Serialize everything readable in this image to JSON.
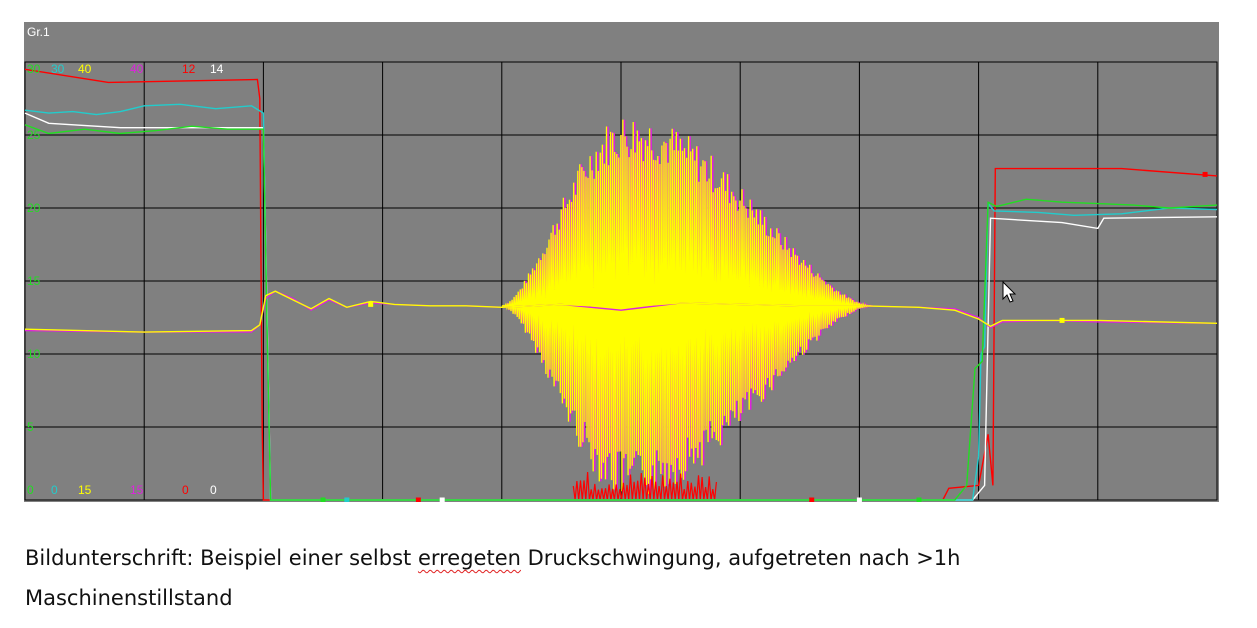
{
  "chart_data": {
    "type": "line",
    "panel_label": "Gr.1",
    "xlim": [
      0,
      1
    ],
    "ylim": [
      0,
      30
    ],
    "y_ticks": [
      "5",
      "10",
      "15",
      "20",
      "25"
    ],
    "grid": true,
    "top_scale": [
      {
        "text": "30",
        "color": "#22dd22"
      },
      {
        "text": "30",
        "color": "#22cccc"
      },
      {
        "text": "40",
        "color": "#ffff00"
      },
      {
        "text": "40",
        "color": "#dd22dd"
      },
      {
        "text": "12",
        "color": "#ff0000"
      },
      {
        "text": "14",
        "color": "#ffffff"
      }
    ],
    "bottom_scale": [
      {
        "text": "0",
        "color": "#22dd22"
      },
      {
        "text": "0",
        "color": "#22cccc"
      },
      {
        "text": "15",
        "color": "#ffff00"
      },
      {
        "text": "15",
        "color": "#dd22dd"
      },
      {
        "text": "0",
        "color": "#ff0000"
      },
      {
        "text": "0",
        "color": "#ffffff"
      }
    ],
    "series": [
      {
        "color": "#ff0000",
        "points": [
          [
            0,
            29.5
          ],
          [
            0.07,
            28.6
          ],
          [
            0.195,
            28.8
          ],
          [
            0.197,
            27.5
          ],
          [
            0.199,
            5
          ],
          [
            0.2,
            0
          ],
          [
            0.39,
            0
          ],
          [
            0.46,
            0
          ],
          [
            0.77,
            0
          ],
          [
            0.775,
            0.8
          ],
          [
            0.8,
            1
          ],
          [
            0.808,
            4.5
          ],
          [
            0.812,
            1
          ],
          [
            0.814,
            22.7
          ],
          [
            0.92,
            22.7
          ],
          [
            1,
            22.2
          ]
        ]
      },
      {
        "color": "#ffffff",
        "points": [
          [
            0,
            26.5
          ],
          [
            0.02,
            25.8
          ],
          [
            0.08,
            25.5
          ],
          [
            0.2,
            25.5
          ],
          [
            0.203,
            13
          ],
          [
            0.206,
            0
          ],
          [
            0.795,
            0
          ],
          [
            0.805,
            1
          ],
          [
            0.81,
            19.3
          ],
          [
            0.87,
            19
          ],
          [
            0.9,
            18.6
          ],
          [
            0.905,
            19.3
          ],
          [
            1,
            19.4
          ]
        ]
      },
      {
        "color": "#22cccc",
        "points": [
          [
            0,
            26.7
          ],
          [
            0.02,
            26.5
          ],
          [
            0.04,
            26.6
          ],
          [
            0.06,
            26.4
          ],
          [
            0.08,
            26.6
          ],
          [
            0.1,
            27
          ],
          [
            0.13,
            27.1
          ],
          [
            0.16,
            26.8
          ],
          [
            0.19,
            27
          ],
          [
            0.2,
            26.5
          ],
          [
            0.203,
            12
          ],
          [
            0.206,
            0
          ],
          [
            0.795,
            0
          ],
          [
            0.8,
            3
          ],
          [
            0.802,
            10
          ],
          [
            0.805,
            10.5
          ],
          [
            0.808,
            20.3
          ],
          [
            0.813,
            19.8
          ],
          [
            0.85,
            19.7
          ],
          [
            0.88,
            19.5
          ],
          [
            0.92,
            19.6
          ],
          [
            0.96,
            20
          ],
          [
            1,
            19.9
          ]
        ]
      },
      {
        "color": "#22dd22",
        "points": [
          [
            0,
            25.7
          ],
          [
            0.02,
            25.1
          ],
          [
            0.05,
            25.4
          ],
          [
            0.08,
            25.1
          ],
          [
            0.11,
            25.3
          ],
          [
            0.14,
            25.6
          ],
          [
            0.17,
            25.4
          ],
          [
            0.2,
            25.4
          ],
          [
            0.203,
            12
          ],
          [
            0.206,
            0
          ],
          [
            0.78,
            0
          ],
          [
            0.79,
            1
          ],
          [
            0.797,
            9
          ],
          [
            0.803,
            9.5
          ],
          [
            0.808,
            20.4
          ],
          [
            0.815,
            20.1
          ],
          [
            0.84,
            20.6
          ],
          [
            0.87,
            20.4
          ],
          [
            0.9,
            20.3
          ],
          [
            0.93,
            20.2
          ],
          [
            0.96,
            20
          ],
          [
            1,
            20.2
          ]
        ]
      },
      {
        "color": "#dd22dd",
        "points": [
          [
            0,
            11.6
          ],
          [
            0.1,
            11.5
          ],
          [
            0.19,
            11.5
          ],
          [
            0.197,
            12
          ],
          [
            0.202,
            13.8
          ],
          [
            0.21,
            14.3
          ],
          [
            0.225,
            13.8
          ],
          [
            0.24,
            13
          ],
          [
            0.255,
            13.7
          ],
          [
            0.27,
            13.2
          ],
          [
            0.29,
            13.5
          ],
          [
            0.31,
            13.4
          ],
          [
            0.34,
            13.3
          ],
          [
            0.37,
            13.3
          ],
          [
            0.4,
            13.2
          ],
          [
            0.45,
            13.4
          ],
          [
            0.5,
            13
          ],
          [
            0.55,
            13.5
          ],
          [
            0.6,
            13.4
          ],
          [
            0.65,
            13.3
          ],
          [
            0.7,
            13.3
          ],
          [
            0.75,
            13.2
          ],
          [
            0.78,
            13.1
          ],
          [
            0.79,
            12.8
          ],
          [
            0.8,
            12.5
          ],
          [
            0.81,
            11.8
          ],
          [
            0.82,
            12.2
          ],
          [
            0.86,
            12.3
          ],
          [
            0.9,
            12.2
          ],
          [
            1,
            12.1
          ]
        ]
      },
      {
        "color": "#ffff00",
        "points": [
          [
            0,
            11.7
          ],
          [
            0.1,
            11.5
          ],
          [
            0.19,
            11.6
          ],
          [
            0.197,
            12
          ],
          [
            0.202,
            14
          ],
          [
            0.21,
            14.3
          ],
          [
            0.225,
            13.7
          ],
          [
            0.24,
            13.1
          ],
          [
            0.255,
            13.8
          ],
          [
            0.27,
            13.2
          ],
          [
            0.29,
            13.6
          ],
          [
            0.31,
            13.4
          ],
          [
            0.34,
            13.3
          ],
          [
            0.37,
            13.3
          ],
          [
            0.4,
            13.2
          ],
          [
            0.45,
            13.4
          ],
          [
            0.5,
            13.2
          ],
          [
            0.55,
            13.5
          ],
          [
            0.6,
            13.4
          ],
          [
            0.65,
            13.3
          ],
          [
            0.7,
            13.3
          ],
          [
            0.75,
            13.2
          ],
          [
            0.78,
            13
          ],
          [
            0.79,
            12.7
          ],
          [
            0.8,
            12.4
          ],
          [
            0.81,
            11.9
          ],
          [
            0.82,
            12.3
          ],
          [
            0.86,
            12.3
          ],
          [
            0.9,
            12.3
          ],
          [
            1,
            12.1
          ]
        ]
      }
    ],
    "oscillation": {
      "center": 13.3,
      "x_range": [
        0.4,
        0.71
      ],
      "peak_x": 0.505,
      "peak_amplitude": 13.3
    },
    "red_burst": {
      "x_range": [
        0.46,
        0.58
      ],
      "max_value": 2
    }
  },
  "caption": {
    "prefix": "Bildunterschrift: Beispiel einer selbst ",
    "misspelled": "erregeten",
    "suffix": " Druckschwingung, aufgetreten nach >1h Maschinenstillstand"
  }
}
